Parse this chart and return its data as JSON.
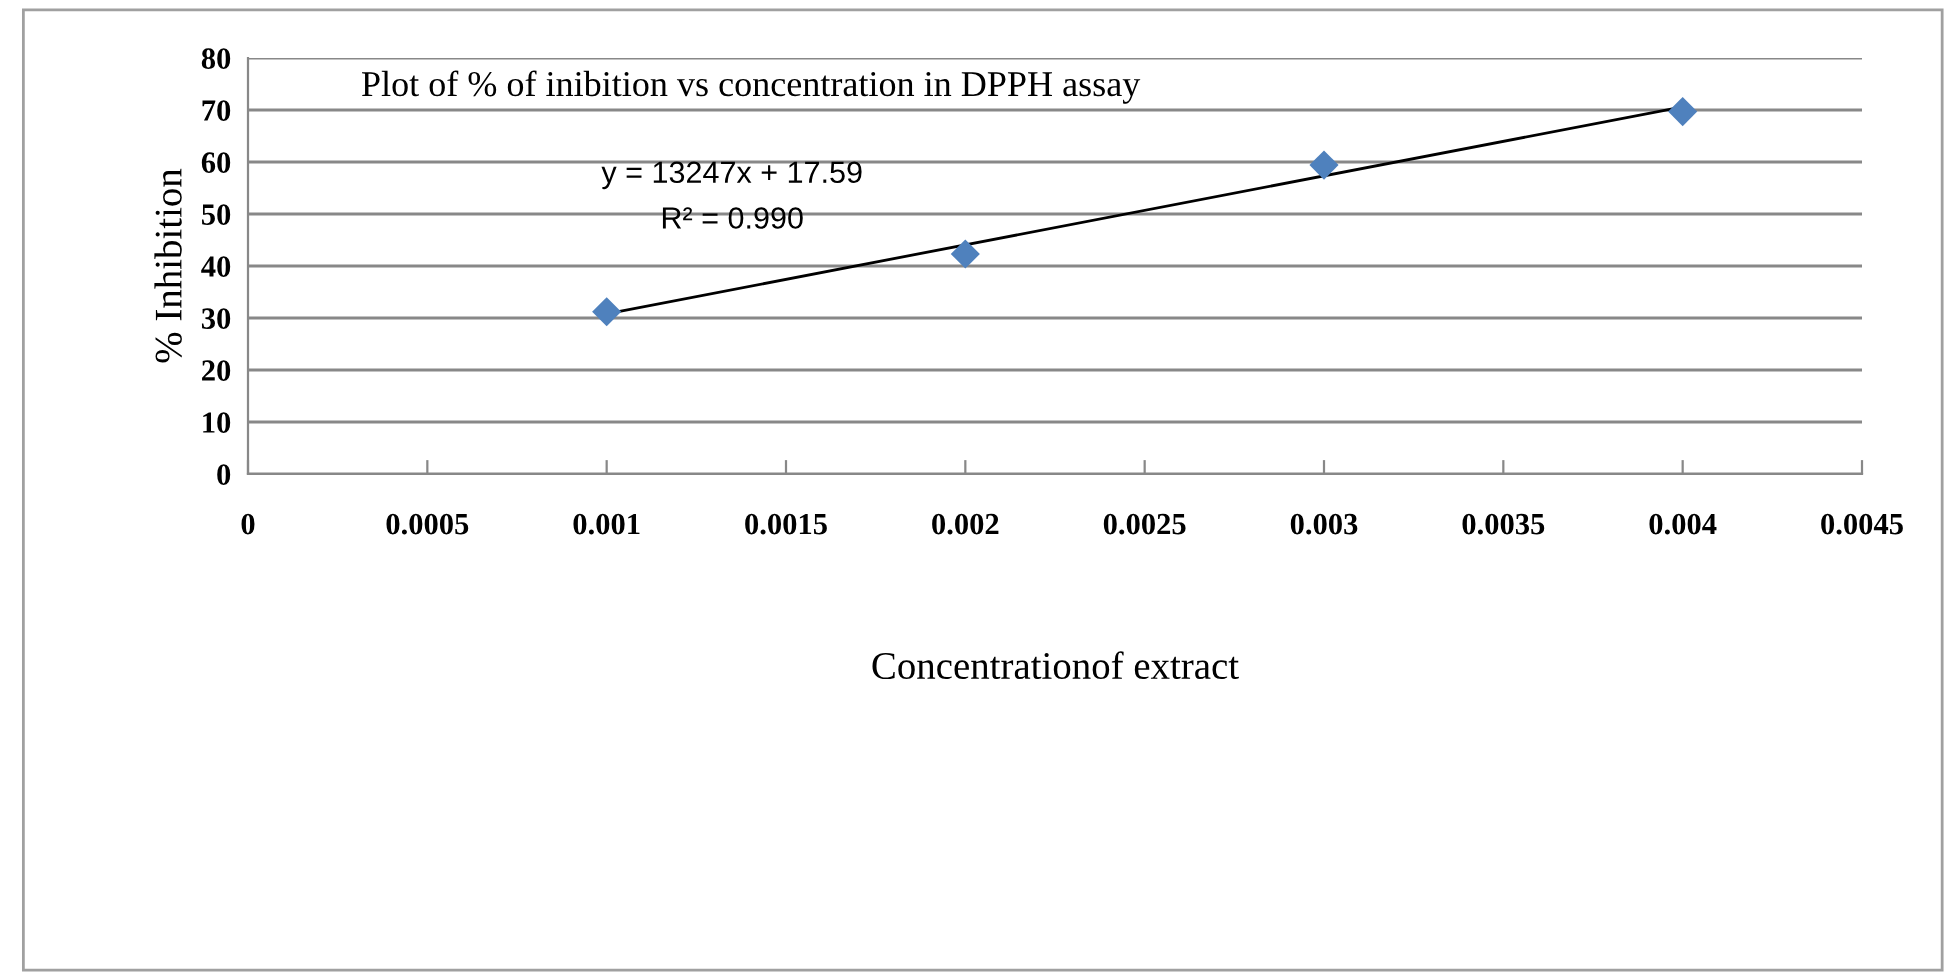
{
  "chart_data": {
    "type": "scatter",
    "title": "Plot of % of inibition vs concentration in DPPH assay",
    "xlabel": "Concentrationof extract",
    "ylabel": "% Inhibition",
    "annotations": [
      "y = 13247x + 17.59",
      "R² = 0.990"
    ],
    "series": [
      {
        "color": "#4f81bd",
        "marker": "diamond",
        "x": [
          0.001,
          0.002,
          0.003,
          0.004
        ],
        "values": [
          31.2,
          42.3,
          59.4,
          69.7
        ]
      },
      {
        "type": "line",
        "color": "#000000",
        "marker": "none",
        "x": [
          0.001,
          0.004
        ],
        "values": [
          30.8,
          70.6
        ]
      }
    ],
    "xlim": [
      0,
      0.0045
    ],
    "xticks": [
      0,
      0.0005,
      0.001,
      0.0015,
      0.002,
      0.0025,
      0.003,
      0.0035,
      0.004,
      0.0045
    ],
    "ylim": [
      0,
      80
    ],
    "yticks": [
      0,
      10,
      20,
      30,
      40,
      50,
      60,
      70,
      80
    ],
    "grid": "y",
    "legend": false
  }
}
